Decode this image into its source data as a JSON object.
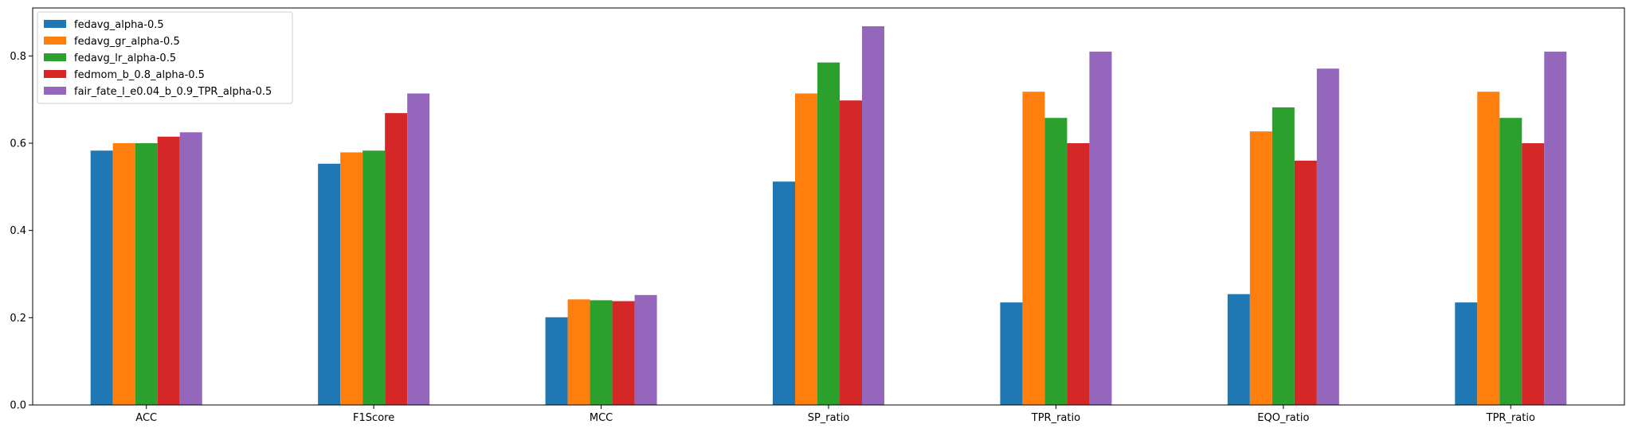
{
  "chart_data": {
    "type": "bar",
    "categories": [
      "ACC",
      "F1Score",
      "MCC",
      "SP_ratio",
      "TPR_ratio",
      "EQO_ratio",
      "TPR_ratio"
    ],
    "series": [
      {
        "name": "fedavg_alpha-0.5",
        "color": "#1f77b4",
        "values": [
          0.583,
          0.553,
          0.201,
          0.512,
          0.235,
          0.254,
          0.235
        ]
      },
      {
        "name": "fedavg_gr_alpha-0.5",
        "color": "#ff7f0e",
        "values": [
          0.6,
          0.579,
          0.242,
          0.714,
          0.718,
          0.627,
          0.718
        ]
      },
      {
        "name": "fedavg_lr_alpha-0.5",
        "color": "#2ca02c",
        "values": [
          0.6,
          0.583,
          0.24,
          0.785,
          0.658,
          0.682,
          0.658
        ]
      },
      {
        "name": "fedmom_b_0.8_alpha-0.5",
        "color": "#d62728",
        "values": [
          0.615,
          0.669,
          0.238,
          0.698,
          0.6,
          0.56,
          0.6
        ]
      },
      {
        "name": "fair_fate_l_e0.04_b_0.9_TPR_alpha-0.5",
        "color": "#9467bd",
        "values": [
          0.625,
          0.714,
          0.252,
          0.868,
          0.81,
          0.771,
          0.81
        ]
      }
    ],
    "title": "",
    "xlabel": "",
    "ylabel": "",
    "ylim": [
      0,
      0.91
    ],
    "yticks": [
      "0.0",
      "0.2",
      "0.4",
      "0.6",
      "0.8"
    ],
    "grid": false,
    "legend_position": "upper-left"
  }
}
